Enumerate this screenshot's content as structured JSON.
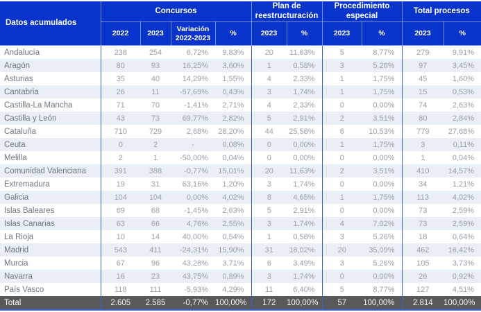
{
  "header": {
    "row_label_header": "Datos acumulados",
    "groups": [
      {
        "label": "Concursos"
      },
      {
        "label": "Plan de reestructuración"
      },
      {
        "label": "Procedimiento especial"
      },
      {
        "label": "Total procesos"
      }
    ],
    "subcolumns": [
      "2022",
      "2023",
      "Variación 2022-2023",
      "%",
      "2023",
      "%",
      "2023",
      "%",
      "2023",
      "%"
    ]
  },
  "rows": [
    {
      "name": "Andalucía",
      "values": [
        "238",
        "254",
        "6,72%",
        "9,83%",
        "20",
        "11,63%",
        "5",
        "8,77%",
        "279",
        "9,91%"
      ]
    },
    {
      "name": "Aragón",
      "values": [
        "80",
        "93",
        "16,25%",
        "3,60%",
        "1",
        "0,58%",
        "3",
        "5,26%",
        "97",
        "3,45%"
      ]
    },
    {
      "name": "Asturias",
      "values": [
        "35",
        "40",
        "14,29%",
        "1,55%",
        "4",
        "2,33%",
        "1",
        "1,75%",
        "45",
        "1,60%"
      ]
    },
    {
      "name": "Cantabria",
      "values": [
        "26",
        "11",
        "-57,69%",
        "0,43%",
        "3",
        "1,74%",
        "1",
        "1,75%",
        "15",
        "0,53%"
      ]
    },
    {
      "name": "Castilla-La Mancha",
      "values": [
        "71",
        "70",
        "-1,41%",
        "2,71%",
        "4",
        "2,33%",
        "0",
        "0,00%",
        "74",
        "2,63%"
      ]
    },
    {
      "name": "Castilla y León",
      "values": [
        "43",
        "73",
        "69,77%",
        "2,82%",
        "5",
        "2,91%",
        "2",
        "3,51%",
        "80",
        "2,84%"
      ]
    },
    {
      "name": "Cataluña",
      "values": [
        "710",
        "729",
        "2,68%",
        "28,20%",
        "44",
        "25,58%",
        "6",
        "10,53%",
        "779",
        "27,68%"
      ]
    },
    {
      "name": "Ceuta",
      "values": [
        "0",
        "2",
        "-",
        "0,08%",
        "0",
        "0,00%",
        "1",
        "1,75%",
        "3",
        "0,11%"
      ]
    },
    {
      "name": "Melilla",
      "values": [
        "2",
        "1",
        "-50,00%",
        "0,04%",
        "0",
        "0,00%",
        "0",
        "0,00%",
        "1",
        "0,04%"
      ]
    },
    {
      "name": "Comunidad Valenciana",
      "values": [
        "391",
        "388",
        "-0,77%",
        "15,01%",
        "20",
        "11,63%",
        "2",
        "3,51%",
        "410",
        "14,57%"
      ]
    },
    {
      "name": "Extremadura",
      "values": [
        "19",
        "31",
        "63,16%",
        "1,20%",
        "3",
        "1,74%",
        "0",
        "0,00%",
        "34",
        "1,21%"
      ]
    },
    {
      "name": "Galicia",
      "values": [
        "104",
        "104",
        "0,00%",
        "4,02%",
        "8",
        "4,65%",
        "1",
        "1,75%",
        "113",
        "4,02%"
      ]
    },
    {
      "name": "Islas Baleares",
      "values": [
        "69",
        "68",
        "-1,45%",
        "2,63%",
        "5",
        "2,91%",
        "0",
        "0,00%",
        "73",
        "2,59%"
      ]
    },
    {
      "name": "Islas Canarias",
      "values": [
        "63",
        "66",
        "4,76%",
        "2,55%",
        "3",
        "1,74%",
        "4",
        "7,02%",
        "73",
        "2,59%"
      ]
    },
    {
      "name": "La Rioja",
      "values": [
        "10",
        "14",
        "40,00%",
        "0,54%",
        "1",
        "0,58%",
        "3",
        "5,26%",
        "18",
        "0,64%"
      ]
    },
    {
      "name": "Madrid",
      "values": [
        "543",
        "411",
        "-24,31%",
        "15,90%",
        "31",
        "18,02%",
        "20",
        "35,09%",
        "462",
        "16,42%"
      ]
    },
    {
      "name": "Murcia",
      "values": [
        "67",
        "96",
        "43,28%",
        "3,71%",
        "6",
        "3,49%",
        "3",
        "5,26%",
        "105",
        "3,73%"
      ]
    },
    {
      "name": "Navarra",
      "values": [
        "16",
        "23",
        "43,75%",
        "0,89%",
        "3",
        "1,74%",
        "0",
        "0,00%",
        "26",
        "0,92%"
      ]
    },
    {
      "name": "País Vasco",
      "values": [
        "118",
        "111",
        "-5,93%",
        "4,29%",
        "11",
        "6,40%",
        "5",
        "8,77%",
        "127",
        "4,51%"
      ]
    }
  ],
  "total_row": {
    "name": "Total",
    "values": [
      "2.605",
      "2.585",
      "-0,77%",
      "100,00%",
      "172",
      "100,00%",
      "57",
      "100,00%",
      "2.814",
      "100,00%"
    ]
  },
  "colors": {
    "header_blue": "#0834cb",
    "separator_blue": "#3a62c6",
    "stripe": "#e9eff5",
    "total_bg": "#58595b",
    "name_text": "#6e7881",
    "num_text": "#98a0a8"
  }
}
